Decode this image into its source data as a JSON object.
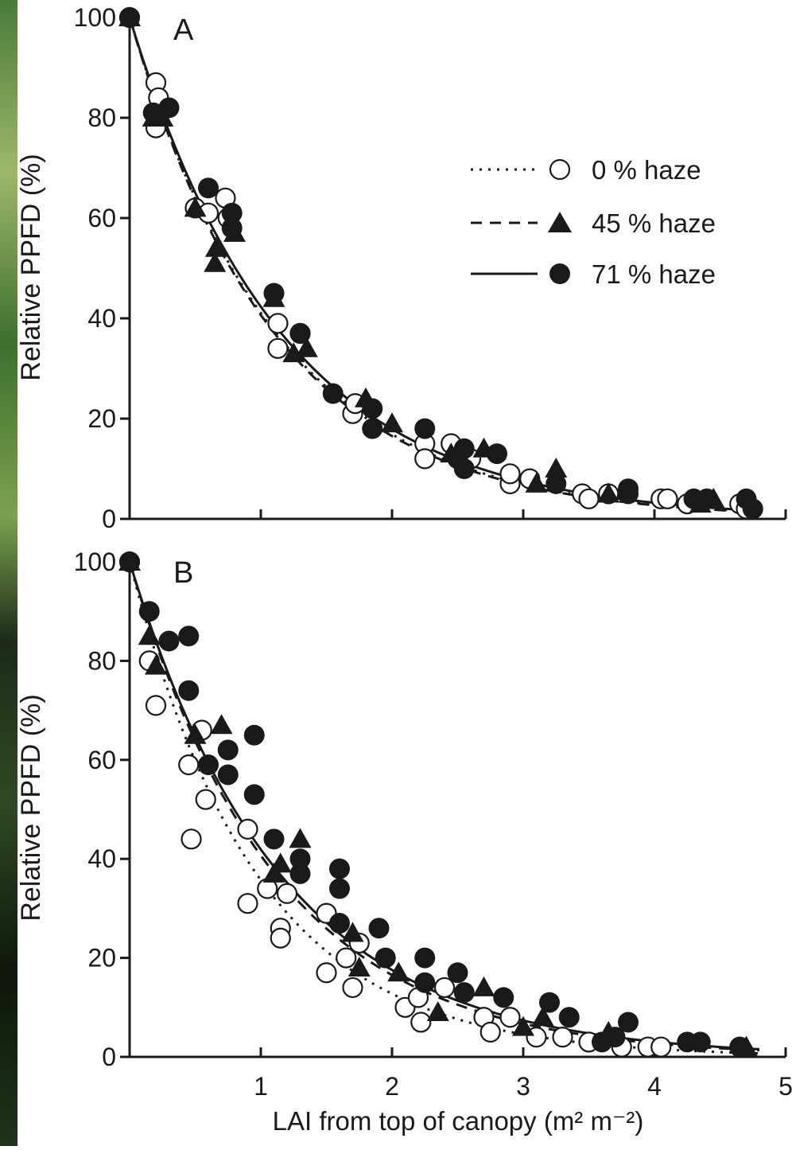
{
  "chart_data": [
    {
      "type": "scatter",
      "panel_label": "A",
      "ylabel": "Relative PPFD (%)",
      "xlim": [
        0,
        5
      ],
      "ylim": [
        0,
        100
      ],
      "yticks": [
        0,
        20,
        40,
        60,
        80,
        100
      ],
      "legend_position": "top-right",
      "series": [
        {
          "name": "0 % haze",
          "marker": "open-circle",
          "line": "dotted",
          "curve_k": 0.89,
          "points": [
            [
              0,
              100
            ],
            [
              0.2,
              87
            ],
            [
              0.22,
              84
            ],
            [
              0.2,
              78
            ],
            [
              0.5,
              62
            ],
            [
              0.6,
              61
            ],
            [
              0.73,
              64
            ],
            [
              0.75,
              60
            ],
            [
              1.13,
              39
            ],
            [
              1.13,
              34
            ],
            [
              1.3,
              37
            ],
            [
              1.7,
              21
            ],
            [
              1.72,
              23
            ],
            [
              2.25,
              15
            ],
            [
              2.25,
              12
            ],
            [
              2.45,
              15
            ],
            [
              2.6,
              12
            ],
            [
              2.9,
              7
            ],
            [
              2.9,
              9
            ],
            [
              3.05,
              8
            ],
            [
              3.45,
              5
            ],
            [
              3.5,
              4
            ],
            [
              3.65,
              5
            ],
            [
              4.05,
              4
            ],
            [
              4.1,
              4
            ],
            [
              4.25,
              3
            ],
            [
              4.65,
              3
            ],
            [
              4.7,
              2
            ]
          ]
        },
        {
          "name": "45 % haze",
          "marker": "filled-triangle",
          "line": "dashed",
          "curve_k": 0.9,
          "points": [
            [
              0,
              100
            ],
            [
              0.18,
              80
            ],
            [
              0.25,
              80
            ],
            [
              0.5,
              62
            ],
            [
              0.65,
              51
            ],
            [
              0.66,
              54
            ],
            [
              0.8,
              57
            ],
            [
              1.1,
              44
            ],
            [
              1.25,
              33
            ],
            [
              1.35,
              34
            ],
            [
              1.8,
              24
            ],
            [
              2.0,
              19
            ],
            [
              2.45,
              13
            ],
            [
              2.7,
              14
            ],
            [
              3.1,
              7
            ],
            [
              3.25,
              10
            ],
            [
              3.65,
              5
            ],
            [
              4.35,
              3
            ],
            [
              4.45,
              4
            ]
          ]
        },
        {
          "name": "71 % haze",
          "marker": "filled-circle",
          "line": "solid",
          "curve_k": 0.86,
          "points": [
            [
              0,
              100
            ],
            [
              0.18,
              81
            ],
            [
              0.3,
              82
            ],
            [
              0.6,
              66
            ],
            [
              0.78,
              61
            ],
            [
              0.78,
              58
            ],
            [
              1.1,
              45
            ],
            [
              1.3,
              37
            ],
            [
              1.55,
              25
            ],
            [
              1.85,
              22
            ],
            [
              1.85,
              18
            ],
            [
              2.25,
              18
            ],
            [
              2.5,
              12
            ],
            [
              2.55,
              10
            ],
            [
              2.55,
              14
            ],
            [
              2.8,
              13
            ],
            [
              3.25,
              7
            ],
            [
              3.8,
              6
            ],
            [
              3.8,
              5
            ],
            [
              4.3,
              4
            ],
            [
              4.4,
              4
            ],
            [
              4.7,
              4
            ],
            [
              4.75,
              2
            ]
          ]
        }
      ]
    },
    {
      "type": "scatter",
      "panel_label": "B",
      "xlabel": "LAI from top of canopy (m² m⁻²)",
      "ylabel": "Relative PPFD (%)",
      "xlim": [
        0,
        5
      ],
      "ylim": [
        0,
        100
      ],
      "xticks": [
        1,
        2,
        3,
        4,
        5
      ],
      "yticks": [
        0,
        20,
        40,
        60,
        80,
        100
      ],
      "series": [
        {
          "name": "0 % haze",
          "marker": "open-circle",
          "line": "dotted",
          "curve_k": 1.03,
          "points": [
            [
              0,
              100
            ],
            [
              0.15,
              80
            ],
            [
              0.2,
              71
            ],
            [
              0.45,
              59
            ],
            [
              0.47,
              44
            ],
            [
              0.58,
              52
            ],
            [
              0.55,
              66
            ],
            [
              0.9,
              46
            ],
            [
              0.9,
              31
            ],
            [
              1.05,
              34
            ],
            [
              1.2,
              33
            ],
            [
              1.15,
              26
            ],
            [
              1.15,
              24
            ],
            [
              1.5,
              29
            ],
            [
              1.5,
              17
            ],
            [
              1.65,
              20
            ],
            [
              1.7,
              14
            ],
            [
              1.75,
              23
            ],
            [
              2.1,
              10
            ],
            [
              2.2,
              12
            ],
            [
              2.22,
              7
            ],
            [
              2.4,
              14
            ],
            [
              2.7,
              8
            ],
            [
              2.75,
              5
            ],
            [
              2.9,
              8
            ],
            [
              3.1,
              4
            ],
            [
              3.3,
              4
            ],
            [
              3.5,
              3
            ],
            [
              3.75,
              2
            ],
            [
              3.95,
              2
            ],
            [
              4.05,
              2
            ]
          ]
        },
        {
          "name": "45 % haze",
          "marker": "filled-triangle",
          "line": "dashed",
          "curve_k": 0.9,
          "points": [
            [
              0,
              100
            ],
            [
              0.15,
              85
            ],
            [
              0.2,
              79
            ],
            [
              0.5,
              65
            ],
            [
              0.7,
              67
            ],
            [
              1.1,
              37
            ],
            [
              1.15,
              39
            ],
            [
              1.3,
              44
            ],
            [
              1.7,
              25
            ],
            [
              1.75,
              18
            ],
            [
              2.05,
              17
            ],
            [
              2.35,
              9
            ],
            [
              2.7,
              14
            ],
            [
              3.0,
              6
            ],
            [
              3.15,
              8
            ],
            [
              3.65,
              5
            ],
            [
              4.7,
              2
            ]
          ]
        },
        {
          "name": "71 % haze",
          "marker": "filled-circle",
          "line": "solid",
          "curve_k": 0.87,
          "points": [
            [
              0,
              100
            ],
            [
              0.15,
              90
            ],
            [
              0.3,
              84
            ],
            [
              0.45,
              85
            ],
            [
              0.45,
              74
            ],
            [
              0.6,
              59
            ],
            [
              0.75,
              62
            ],
            [
              0.75,
              57
            ],
            [
              0.95,
              65
            ],
            [
              0.95,
              53
            ],
            [
              1.1,
              44
            ],
            [
              1.3,
              37
            ],
            [
              1.3,
              40
            ],
            [
              1.6,
              38
            ],
            [
              1.6,
              34
            ],
            [
              1.6,
              27
            ],
            [
              1.9,
              26
            ],
            [
              1.95,
              20
            ],
            [
              2.25,
              20
            ],
            [
              2.25,
              15
            ],
            [
              2.5,
              17
            ],
            [
              2.55,
              13
            ],
            [
              2.85,
              12
            ],
            [
              3.2,
              11
            ],
            [
              3.35,
              8
            ],
            [
              3.6,
              3
            ],
            [
              3.7,
              4
            ],
            [
              3.8,
              7
            ],
            [
              4.25,
              3
            ],
            [
              4.35,
              3
            ],
            [
              4.65,
              2
            ]
          ]
        }
      ]
    }
  ]
}
